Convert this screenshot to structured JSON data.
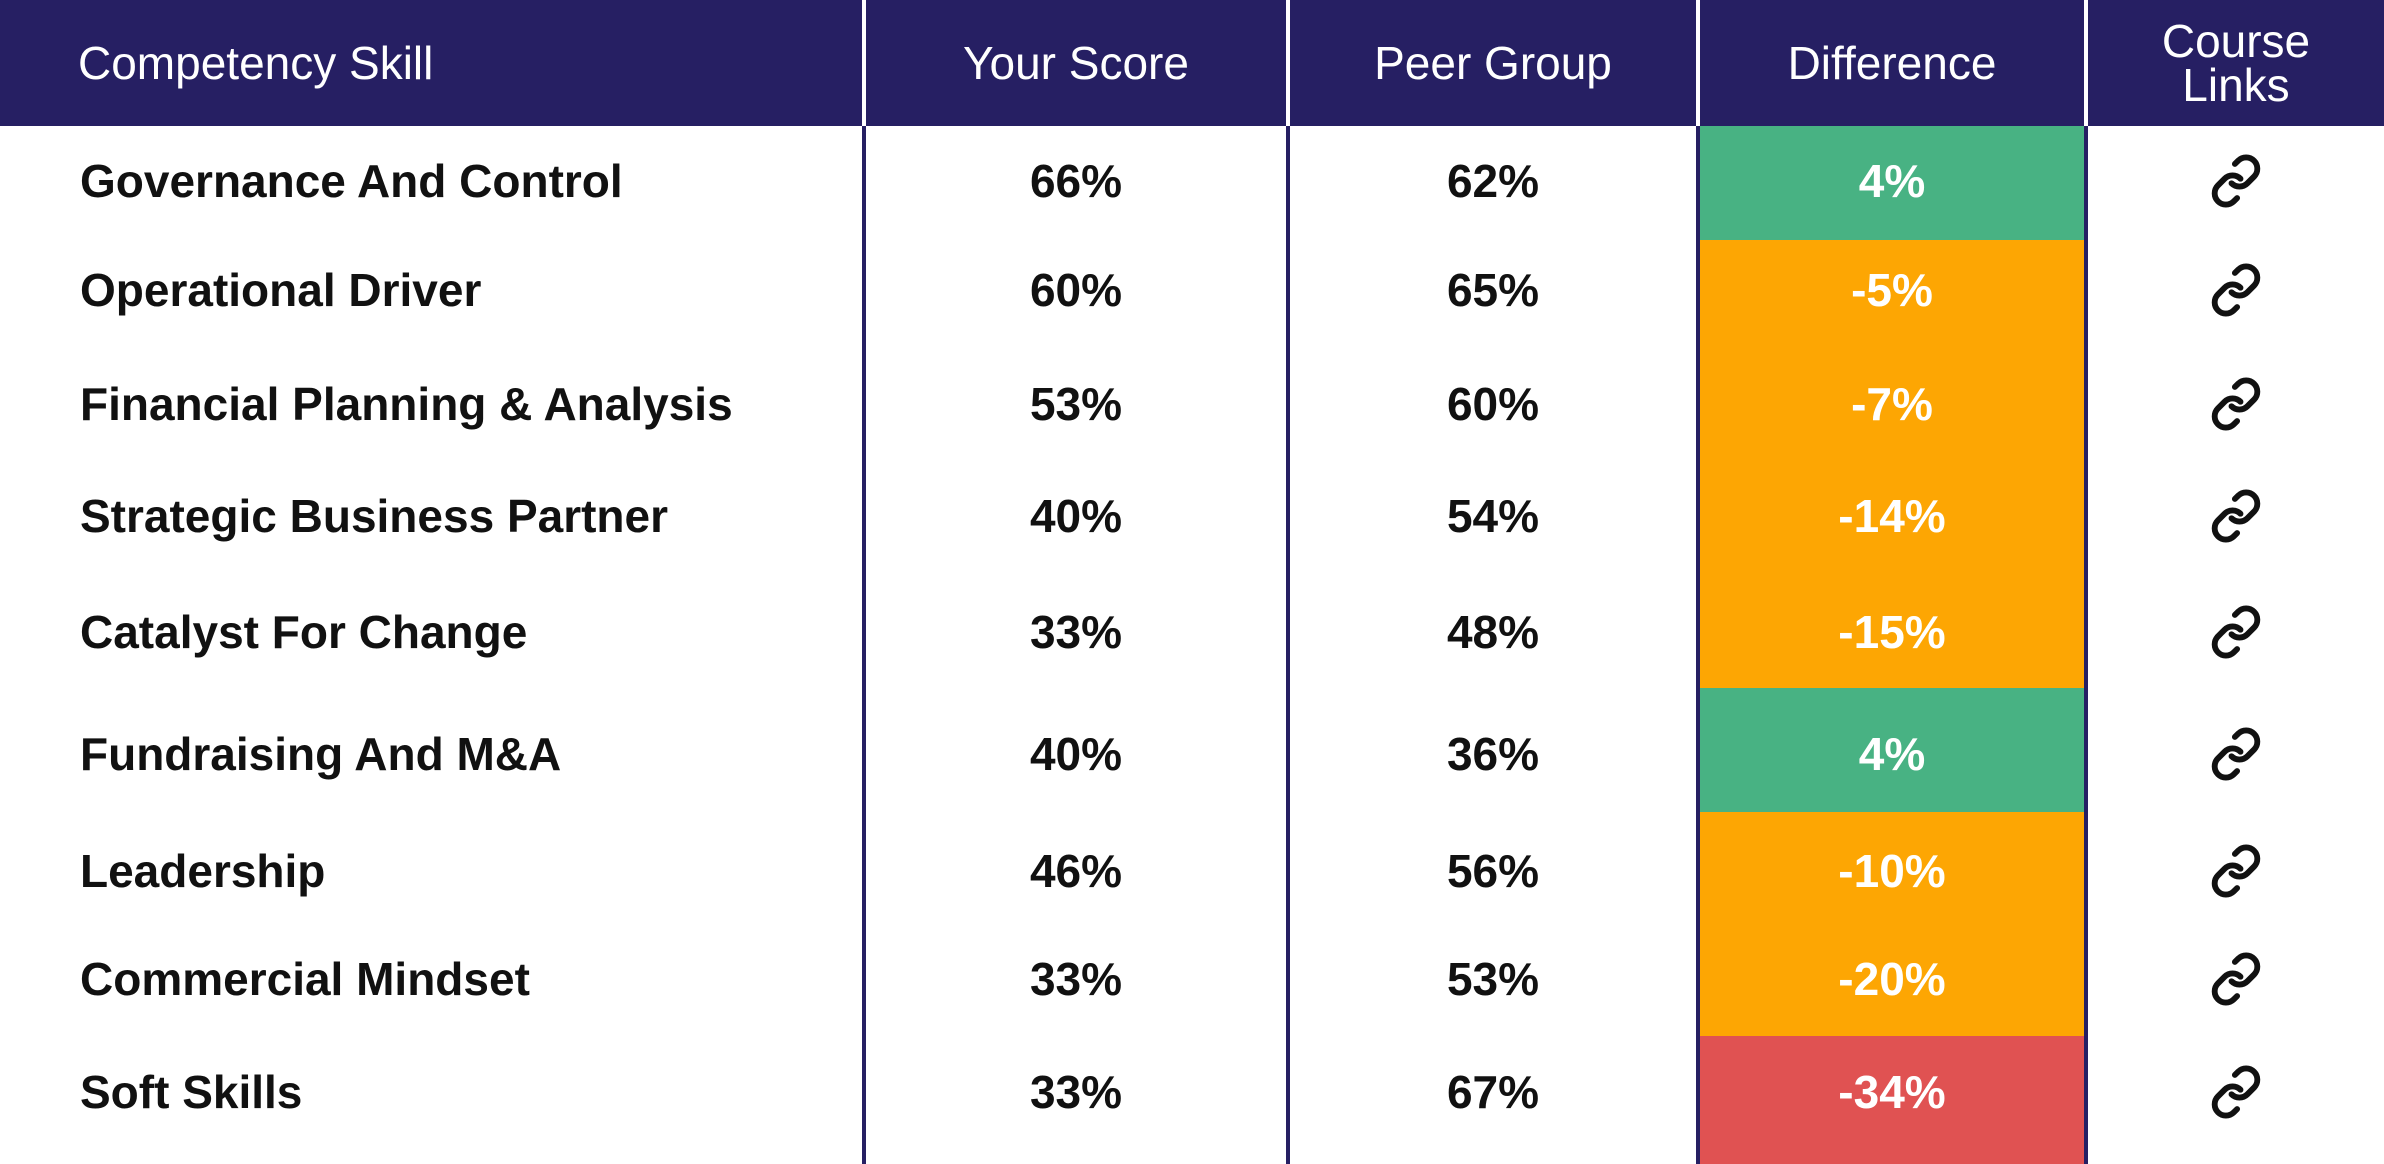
{
  "header": {
    "skill": "Competency Skill",
    "your_score": "Your Score",
    "peer_group": "Peer Group",
    "difference": "Difference",
    "course_links_line1": "Course",
    "course_links_line2": "Links"
  },
  "colors": {
    "header_bg": "#261f63",
    "positive": "#48b283",
    "negative": "#fda603",
    "critical": "#e05252"
  },
  "link_icon": "link-icon",
  "rows": [
    {
      "skill": "Governance And Control",
      "your_score": "66%",
      "peer_group": "62%",
      "difference": "4%",
      "status": "positive"
    },
    {
      "skill": "Operational Driver",
      "your_score": "60%",
      "peer_group": "65%",
      "difference": "-5%",
      "status": "negative"
    },
    {
      "skill": "Financial Planning & Analysis",
      "your_score": "53%",
      "peer_group": "60%",
      "difference": "-7%",
      "status": "negative"
    },
    {
      "skill": "Strategic Business Partner",
      "your_score": "40%",
      "peer_group": "54%",
      "difference": "-14%",
      "status": "negative"
    },
    {
      "skill": "Catalyst For Change",
      "your_score": "33%",
      "peer_group": "48%",
      "difference": "-15%",
      "status": "negative"
    },
    {
      "skill": "Fundraising And M&A",
      "your_score": "40%",
      "peer_group": "36%",
      "difference": "4%",
      "status": "positive"
    },
    {
      "skill": "Leadership",
      "your_score": "46%",
      "peer_group": "56%",
      "difference": "-10%",
      "status": "negative"
    },
    {
      "skill": "Commercial Mindset",
      "your_score": "33%",
      "peer_group": "53%",
      "difference": "-20%",
      "status": "negative"
    },
    {
      "skill": "Soft Skills",
      "your_score": "33%",
      "peer_group": "67%",
      "difference": "-34%",
      "status": "critical"
    }
  ]
}
